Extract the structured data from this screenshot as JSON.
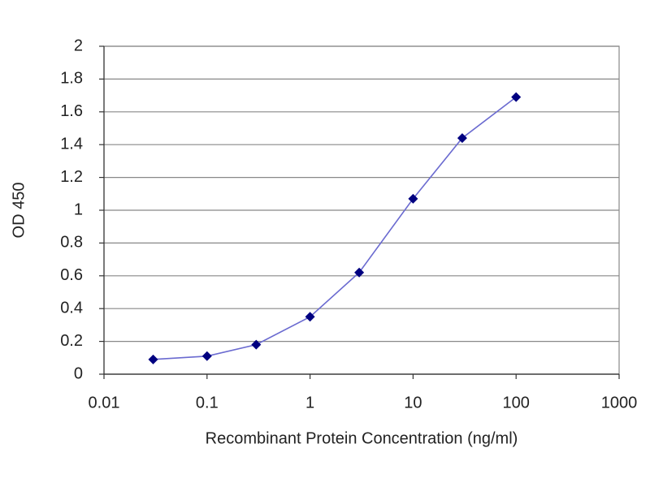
{
  "chart_data": {
    "type": "line",
    "x_label": "Recombinant Protein Concentration (ng/ml)",
    "y_label": "OD 450",
    "x": [
      0.03,
      0.1,
      0.3,
      1,
      3,
      10,
      30,
      100
    ],
    "values": [
      0.09,
      0.11,
      0.18,
      0.35,
      0.62,
      1.07,
      1.44,
      1.69
    ],
    "color": "#6a6ad0",
    "marker_color": "#000080",
    "xscale": "log",
    "xlim": [
      0.01,
      1000
    ],
    "xticks": [
      0.01,
      0.1,
      1,
      10,
      100,
      1000
    ],
    "ylim": [
      0,
      2
    ],
    "yticks": [
      0,
      0.2,
      0.4,
      0.6,
      0.8,
      1,
      1.2,
      1.4,
      1.6,
      1.8,
      2
    ],
    "grid": true
  }
}
